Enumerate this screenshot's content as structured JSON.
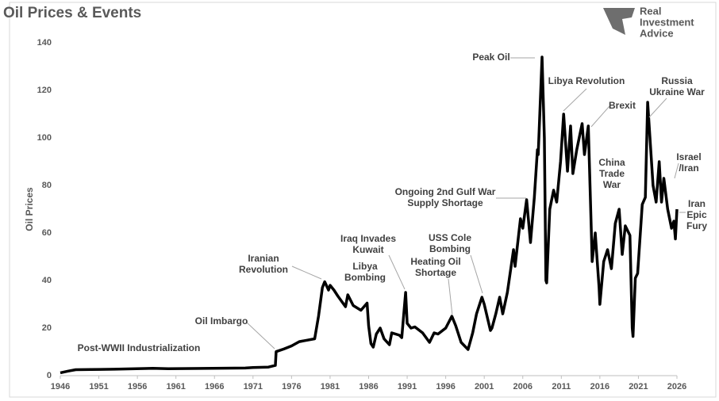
{
  "chart_data": {
    "type": "line",
    "title": "Oil Prices & Events",
    "y_label": "Oil Prices",
    "logo": [
      "Real",
      "Investment",
      "Advice"
    ],
    "x": [
      1946,
      1947,
      1948,
      1950,
      1953,
      1957,
      1958,
      1960,
      1970,
      1971,
      1973,
      1973.9,
      1974,
      1975,
      1976,
      1977,
      1978,
      1979,
      1979.5,
      1980,
      1980.3,
      1980.8,
      1981,
      1981.5,
      1982,
      1983,
      1983.3,
      1984,
      1985,
      1985.8,
      1986,
      1986.3,
      1986.6,
      1987,
      1987.5,
      1988,
      1988.7,
      1989,
      1990,
      1990.3,
      1990.8,
      1991,
      1991.5,
      1992,
      1993,
      1993.9,
      1994.5,
      1995,
      1996,
      1996.8,
      1997.3,
      1998,
      1998.9,
      1999.5,
      2000,
      2000.7,
      2001,
      2001.8,
      2002,
      2002.5,
      2003,
      2003.4,
      2004,
      2004.8,
      2005,
      2005.7,
      2006,
      2006.5,
      2007,
      2007.5,
      2007.9,
      2008,
      2008.5,
      2008.8,
      2009,
      2009.1,
      2009.5,
      2010,
      2010.4,
      2010.9,
      2011.3,
      2011.8,
      2012.2,
      2012.5,
      2013,
      2013.7,
      2014,
      2014.5,
      2014.9,
      2015,
      2015.4,
      2015.9,
      2016,
      2016.5,
      2017,
      2017.5,
      2018,
      2018.5,
      2018.9,
      2019.3,
      2019.9,
      2020.2,
      2020.3,
      2020.6,
      2020.9,
      2021.5,
      2021.9,
      2022.2,
      2022.5,
      2022.9,
      2023.3,
      2023.7,
      2024,
      2024.3,
      2024.8,
      2025.3,
      2025.6,
      2025.8,
      2026
    ],
    "series": [
      {
        "color": "#000000",
        "values": [
          1.2,
          1.9,
          2.5,
          2.6,
          2.7,
          3.0,
          3.1,
          2.9,
          3.2,
          3.4,
          3.6,
          4.3,
          10.1,
          11.2,
          12.5,
          14.3,
          14.9,
          15.5,
          25,
          37,
          39.5,
          36,
          38,
          36,
          33.5,
          29,
          34,
          29.5,
          27.5,
          30.5,
          21,
          13.5,
          12,
          17.5,
          20,
          15.5,
          13,
          18,
          17,
          16,
          35,
          22,
          20,
          20.5,
          18,
          14,
          18,
          17.5,
          20,
          25,
          21,
          14,
          11,
          18,
          26,
          33,
          30,
          19,
          20,
          26,
          33,
          26,
          35,
          53,
          46,
          66,
          62,
          74,
          56,
          75,
          95,
          93,
          134,
          100,
          40,
          39,
          70,
          78,
          73,
          90,
          110,
          86,
          105,
          85,
          95,
          106,
          93,
          105,
          60,
          48,
          60,
          37,
          30,
          48,
          53,
          45,
          64,
          70,
          51,
          63,
          59,
          20,
          16.5,
          41,
          43,
          72,
          75,
          115,
          100,
          80,
          73,
          90,
          73,
          83,
          70,
          62,
          65,
          57.5,
          70
        ]
      }
    ],
    "xlim": [
      1946,
      2026
    ],
    "xticks": [
      1946,
      1951,
      1956,
      1961,
      1966,
      1971,
      1976,
      1981,
      1986,
      1991,
      1996,
      2001,
      2006,
      2011,
      2016,
      2021,
      2026
    ],
    "ylim": [
      0,
      140
    ],
    "yticks": [
      0,
      20,
      40,
      60,
      80,
      100,
      120,
      140
    ],
    "annotations": [
      [
        "Post-WWII Industrialization"
      ],
      [
        "Oil Imbargo"
      ],
      [
        "Iranian",
        "Revolution"
      ],
      [
        "Libya",
        "Bombing"
      ],
      [
        "Iraq Invades",
        "Kuwait"
      ],
      [
        "USS Cole",
        "Bombing"
      ],
      [
        "Heating Oil",
        "Shortage"
      ],
      [
        "Ongoing 2nd Gulf War",
        "Supply Shortage"
      ],
      [
        "Peak Oil"
      ],
      [
        "Libya Revolution"
      ],
      [
        "Brexit"
      ],
      [
        "China",
        "Trade",
        "War"
      ],
      [
        "Russia",
        "Ukraine War"
      ],
      [
        "Israel",
        "/Iran"
      ],
      [
        "Iran",
        "Epic",
        "Fury"
      ]
    ]
  }
}
